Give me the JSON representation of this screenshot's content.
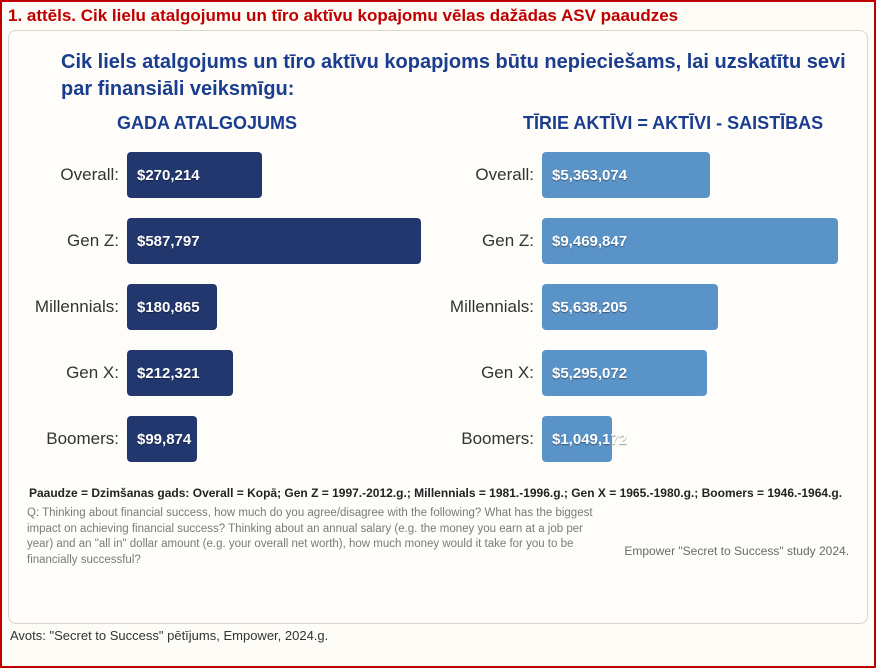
{
  "figure_title": "1. attēls. Cik lielu atalgojumu un tīro aktīvu kopajomu vēlas dažādas ASV paaudzes",
  "subtitle": "Cik liels atalgojums un tīro aktīvu kopapjoms būtu nepieciešams, lai uzskatītu sevi par finansiāli veiksmīgu:",
  "left_chart": {
    "type": "bar",
    "heading": "GADA ATALGOJUMS",
    "bar_color": "#21376e",
    "max_value": 600000,
    "categories": [
      "Overall:",
      "Gen Z:",
      "Millennials:",
      "Gen X:",
      "Boomers:"
    ],
    "values": [
      270214,
      587797,
      180865,
      212321,
      99874
    ],
    "labels": [
      "$270,214",
      "$587,797",
      "$180,865",
      "$212,321",
      "$99,874"
    ],
    "label_color": "#ffffff",
    "label_fontsize": 15
  },
  "right_chart": {
    "type": "bar",
    "heading": "TĪRIE AKTĪVI = AKTĪVI - SAISTĪBAS",
    "bar_color": "#5a93c7",
    "max_value": 9600000,
    "categories": [
      "Overall:",
      "Gen Z:",
      "Millennials:",
      "Gen X:",
      "Boomers:"
    ],
    "values": [
      5363074,
      9469847,
      5638205,
      5295072,
      1049172
    ],
    "labels": [
      "$5,363,074",
      "$9,469,847",
      "$5,638,205",
      "$5,295,072",
      "$1,049,172"
    ],
    "label_color": "#ffffff",
    "label_fontsize": 15
  },
  "category_color": "#333333",
  "category_fontsize": 17,
  "definitions": "Paaudze = Dzimšanas gads: Overall = Kopā; Gen Z = 1997.-2012.g.; Millennials = 1981.-1996.g.; Gen X = 1965.-1980.g.;  Boomers = 1946.-1964.g.",
  "question_text": "Q: Thinking about financial success, how much do you agree/disagree with the following? What has the biggest impact on achieving financial success? Thinking about an annual salary (e.g. the money you earn at a job per year) and an \"all in\" dollar amount (e.g. your overall net worth), how much money would it take for you to be financially successful?",
  "study_label": "Empower \"Secret to Success\" study 2024.",
  "source": "Avots: \"Secret to Success\" pētījums, Empower, 2024.g.",
  "colors": {
    "title": "#c00000",
    "subtitle": "#1a3d8f",
    "border": "#c00000",
    "panel_bg": "#fefdfa",
    "panel_border": "#d8d5cc",
    "question_text": "#7a7a78"
  }
}
